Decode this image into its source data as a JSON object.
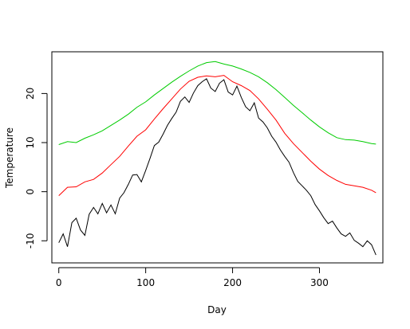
{
  "chart_data": {
    "type": "line",
    "title": "",
    "xlabel": "Day",
    "ylabel": "Temperature",
    "xlim": [
      -8,
      373
    ],
    "ylim": [
      -14.5,
      28.5
    ],
    "x_ticks": [
      0,
      100,
      200,
      300
    ],
    "y_ticks": [
      -10,
      0,
      10,
      20
    ],
    "grid": false,
    "legend": "none",
    "series": [
      {
        "color": "#00cc00",
        "x": [
          0,
          10,
          20,
          30,
          40,
          50,
          60,
          70,
          80,
          90,
          100,
          110,
          120,
          130,
          140,
          150,
          160,
          170,
          180,
          190,
          200,
          210,
          220,
          230,
          240,
          250,
          260,
          270,
          280,
          290,
          300,
          310,
          320,
          330,
          340,
          350,
          360,
          365
        ],
        "y": [
          9.6,
          10.2,
          10.0,
          10.9,
          11.6,
          12.4,
          13.5,
          14.6,
          15.8,
          17.2,
          18.3,
          19.7,
          21.0,
          22.3,
          23.5,
          24.6,
          25.6,
          26.3,
          26.5,
          26.0,
          25.6,
          25.0,
          24.3,
          23.4,
          22.2,
          20.8,
          19.2,
          17.6,
          16.1,
          14.6,
          13.2,
          12.0,
          11.0,
          10.6,
          10.5,
          10.2,
          9.8,
          9.7
        ]
      },
      {
        "color": "#ff0000",
        "x": [
          0,
          10,
          20,
          30,
          40,
          50,
          60,
          70,
          80,
          90,
          100,
          110,
          120,
          130,
          140,
          150,
          160,
          170,
          180,
          190,
          200,
          210,
          220,
          230,
          240,
          250,
          260,
          270,
          280,
          290,
          300,
          310,
          320,
          330,
          340,
          350,
          360,
          365
        ],
        "y": [
          -0.8,
          0.9,
          1.0,
          2.0,
          2.5,
          3.8,
          5.5,
          7.2,
          9.3,
          11.3,
          12.6,
          14.8,
          16.9,
          18.9,
          20.9,
          22.5,
          23.3,
          23.6,
          23.4,
          23.7,
          22.4,
          21.6,
          20.6,
          18.9,
          16.8,
          14.6,
          11.9,
          9.8,
          8.0,
          6.2,
          4.6,
          3.3,
          2.3,
          1.5,
          1.2,
          0.9,
          0.3,
          -0.2
        ]
      },
      {
        "color": "#000000",
        "x": [
          0,
          5,
          10,
          15,
          20,
          25,
          30,
          35,
          40,
          45,
          50,
          55,
          60,
          65,
          70,
          75,
          80,
          85,
          90,
          95,
          100,
          105,
          110,
          115,
          120,
          125,
          130,
          135,
          140,
          145,
          150,
          155,
          160,
          165,
          170,
          175,
          180,
          185,
          190,
          195,
          200,
          205,
          210,
          215,
          220,
          225,
          230,
          235,
          240,
          245,
          250,
          255,
          260,
          265,
          270,
          275,
          280,
          285,
          290,
          295,
          300,
          305,
          310,
          315,
          320,
          325,
          330,
          335,
          340,
          345,
          350,
          355,
          360,
          365
        ],
        "y": [
          -10.4,
          -8.6,
          -11.2,
          -6.3,
          -5.4,
          -7.8,
          -8.9,
          -4.6,
          -3.2,
          -4.5,
          -2.4,
          -4.3,
          -2.7,
          -4.5,
          -1.3,
          -0.2,
          1.5,
          3.4,
          3.5,
          2.0,
          4.3,
          6.8,
          9.4,
          10.1,
          11.7,
          13.5,
          14.9,
          16.2,
          18.4,
          19.3,
          18.2,
          20.1,
          21.6,
          22.4,
          23.0,
          21.1,
          20.4,
          22.1,
          22.8,
          20.3,
          19.7,
          21.5,
          19.2,
          17.3,
          16.5,
          18.1,
          15.0,
          14.2,
          13.0,
          11.3,
          10.1,
          8.5,
          7.2,
          6.0,
          3.9,
          2.1,
          1.2,
          0.3,
          -0.8,
          -2.6,
          -3.9,
          -5.3,
          -6.5,
          -6.0,
          -7.4,
          -8.6,
          -9.1,
          -8.4,
          -9.9,
          -10.5,
          -11.2,
          -10.0,
          -10.8,
          -12.9
        ]
      }
    ]
  }
}
